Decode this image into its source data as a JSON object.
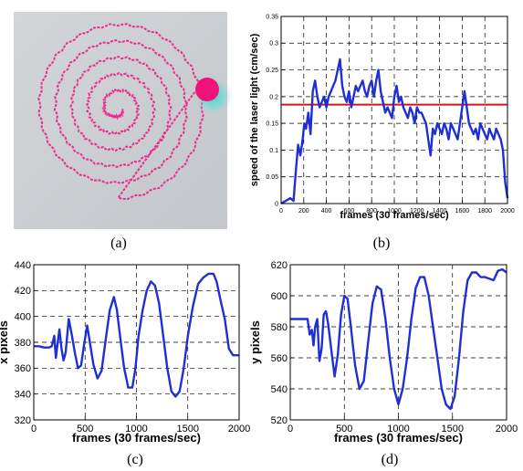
{
  "captions": [
    "(a)",
    "(b)",
    "(c)",
    "(d)"
  ],
  "photo": {
    "background": "#c9ccd0",
    "trace_color": "#ee2b8c",
    "dot_color": "#f0147a",
    "halo_color": "#2fd6c9"
  },
  "chart_data": [
    {
      "id": "b",
      "type": "line",
      "xlabel": "frames (30 frames/sec)",
      "ylabel": "speed of the laser light (cm/sec)",
      "xlim": [
        0,
        2000
      ],
      "ylim": [
        0,
        0.35
      ],
      "xticks": [
        "0",
        "200",
        "400",
        "600",
        "800",
        "1000",
        "1200",
        "1400",
        "1600",
        "1800",
        "2000"
      ],
      "yticks": [
        "0",
        "0.05",
        "0.1",
        "0.15",
        "0.2",
        "0.25",
        "0.3",
        "0.35"
      ],
      "grid": true,
      "line_color": "#1f2fd6",
      "reference_line": {
        "y": 0.185,
        "color": "#e01010"
      },
      "x": [
        0,
        40,
        80,
        110,
        130,
        150,
        170,
        190,
        205,
        220,
        240,
        260,
        280,
        300,
        320,
        340,
        360,
        380,
        400,
        420,
        440,
        460,
        480,
        500,
        520,
        540,
        560,
        580,
        600,
        620,
        640,
        660,
        680,
        700,
        720,
        740,
        760,
        780,
        800,
        820,
        840,
        860,
        880,
        900,
        920,
        940,
        960,
        980,
        1000,
        1020,
        1040,
        1060,
        1080,
        1100,
        1120,
        1140,
        1160,
        1180,
        1200,
        1220,
        1240,
        1260,
        1280,
        1300,
        1320,
        1340,
        1360,
        1380,
        1400,
        1420,
        1440,
        1460,
        1480,
        1500,
        1520,
        1540,
        1560,
        1580,
        1600,
        1620,
        1640,
        1660,
        1680,
        1700,
        1720,
        1740,
        1760,
        1780,
        1800,
        1820,
        1840,
        1860,
        1880,
        1900,
        1920,
        1940,
        1960,
        1980,
        2000
      ],
      "y": [
        0.0,
        0.005,
        0.01,
        0.005,
        0.06,
        0.11,
        0.09,
        0.12,
        0.15,
        0.14,
        0.17,
        0.13,
        0.21,
        0.23,
        0.2,
        0.18,
        0.19,
        0.2,
        0.18,
        0.2,
        0.21,
        0.22,
        0.23,
        0.25,
        0.27,
        0.22,
        0.2,
        0.19,
        0.21,
        0.18,
        0.2,
        0.22,
        0.21,
        0.22,
        0.23,
        0.21,
        0.2,
        0.22,
        0.23,
        0.2,
        0.23,
        0.25,
        0.21,
        0.19,
        0.17,
        0.18,
        0.17,
        0.16,
        0.2,
        0.22,
        0.19,
        0.2,
        0.18,
        0.17,
        0.16,
        0.18,
        0.17,
        0.15,
        0.18,
        0.17,
        0.17,
        0.16,
        0.15,
        0.12,
        0.09,
        0.14,
        0.13,
        0.15,
        0.14,
        0.13,
        0.15,
        0.14,
        0.12,
        0.15,
        0.14,
        0.13,
        0.12,
        0.15,
        0.18,
        0.21,
        0.18,
        0.15,
        0.14,
        0.13,
        0.14,
        0.12,
        0.15,
        0.14,
        0.13,
        0.12,
        0.14,
        0.13,
        0.12,
        0.14,
        0.13,
        0.12,
        0.1,
        0.04,
        0.01
      ]
    },
    {
      "id": "c",
      "type": "line",
      "xlabel": "frames (30 frames/sec)",
      "ylabel": "x pixels",
      "xlim": [
        0,
        2000
      ],
      "ylim": [
        320,
        440
      ],
      "xticks": [
        "0",
        "500",
        "1000",
        "1500",
        "2000"
      ],
      "yticks": [
        "320",
        "340",
        "360",
        "380",
        "400",
        "420",
        "440"
      ],
      "grid": true,
      "line_color": "#1f2fd6",
      "x": [
        0,
        50,
        100,
        150,
        175,
        200,
        215,
        230,
        250,
        270,
        290,
        310,
        340,
        370,
        400,
        430,
        460,
        490,
        520,
        550,
        580,
        620,
        660,
        700,
        740,
        780,
        810,
        840,
        880,
        920,
        960,
        990,
        1020,
        1060,
        1100,
        1140,
        1180,
        1220,
        1260,
        1300,
        1340,
        1380,
        1420,
        1460,
        1500,
        1550,
        1600,
        1650,
        1700,
        1750,
        1780,
        1820,
        1860,
        1900,
        1940,
        1970,
        2000
      ],
      "y": [
        377,
        377,
        376,
        376,
        377,
        385,
        368,
        378,
        390,
        375,
        366,
        372,
        398,
        386,
        372,
        360,
        362,
        378,
        393,
        378,
        363,
        352,
        358,
        382,
        405,
        415,
        405,
        385,
        360,
        345,
        345,
        360,
        385,
        405,
        420,
        427,
        424,
        410,
        385,
        360,
        342,
        338,
        342,
        360,
        385,
        408,
        425,
        430,
        433,
        433,
        427,
        412,
        398,
        375,
        370,
        370,
        370
      ]
    },
    {
      "id": "d",
      "type": "line",
      "xlabel": "frames (30 frames/sec)",
      "ylabel": "y pixels",
      "xlim": [
        0,
        2000
      ],
      "ylim": [
        520,
        620
      ],
      "xticks": [
        "0",
        "500",
        "1000",
        "1500",
        "2000"
      ],
      "yticks": [
        "520",
        "540",
        "560",
        "580",
        "600",
        "620"
      ],
      "grid": true,
      "line_color": "#1f2fd6",
      "x": [
        0,
        60,
        120,
        160,
        180,
        200,
        215,
        230,
        250,
        270,
        290,
        310,
        330,
        350,
        380,
        410,
        440,
        470,
        500,
        530,
        560,
        600,
        640,
        680,
        720,
        760,
        800,
        840,
        880,
        920,
        960,
        1000,
        1040,
        1080,
        1120,
        1160,
        1200,
        1240,
        1280,
        1320,
        1360,
        1400,
        1440,
        1480,
        1520,
        1560,
        1600,
        1640,
        1680,
        1720,
        1760,
        1800,
        1840,
        1880,
        1920,
        1960,
        2000
      ],
      "y": [
        585,
        585,
        585,
        585,
        575,
        578,
        568,
        580,
        585,
        558,
        566,
        588,
        590,
        582,
        565,
        548,
        562,
        588,
        600,
        598,
        580,
        555,
        540,
        545,
        570,
        595,
        606,
        604,
        585,
        560,
        540,
        530,
        540,
        560,
        585,
        605,
        612,
        612,
        600,
        580,
        560,
        540,
        530,
        527,
        535,
        560,
        590,
        610,
        615,
        615,
        612,
        612,
        611,
        610,
        616,
        617,
        615
      ]
    }
  ]
}
